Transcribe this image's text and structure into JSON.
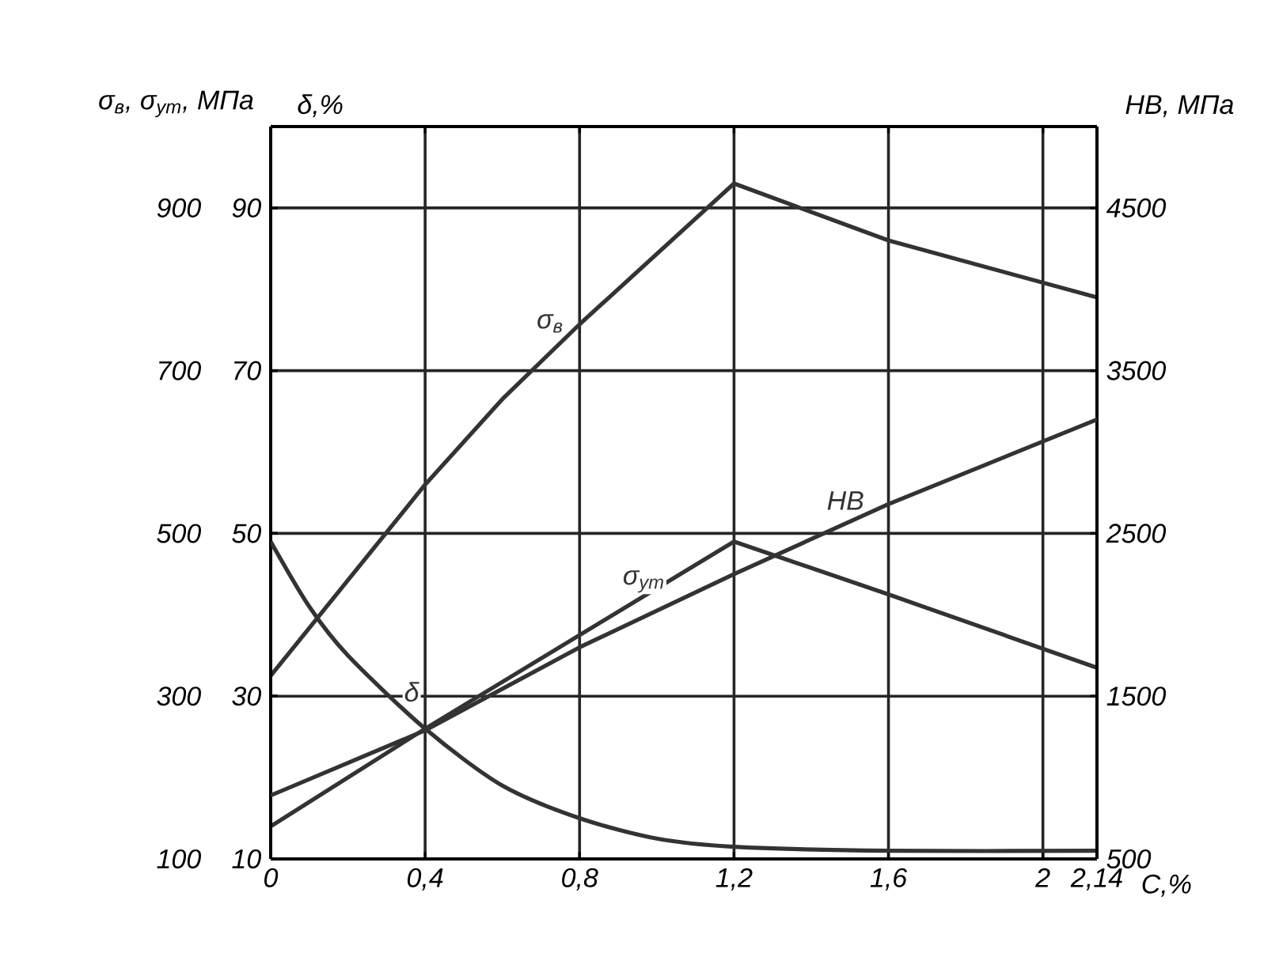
{
  "chart_data": {
    "type": "line",
    "xlabel": "C,%",
    "ylabel": "σ$_{в}$, σ$_{ут}$, МПа",
    "y2label": "δ,%",
    "y3label": "НВ, МПа",
    "xlim": [
      0,
      2.14
    ],
    "xticks": [
      0,
      {
        "value": 0.4,
        "label": "0,4"
      },
      {
        "value": 0.8,
        "label": "0,8"
      },
      {
        "value": 1.2,
        "label": "1,2"
      },
      {
        "value": 1.6,
        "label": "1,6"
      },
      2,
      {
        "value": 2.14,
        "label": "2,14"
      }
    ],
    "ylim": [
      100,
      1000
    ],
    "yticks": [
      100,
      300,
      500,
      700,
      900
    ],
    "y2lim": [
      10,
      100
    ],
    "y2ticks": [
      10,
      30,
      50,
      70,
      90
    ],
    "y3lim": [
      500,
      5000
    ],
    "y3ticks": [
      500,
      1500,
      2500,
      3500,
      4500
    ],
    "grid": true,
    "legend": false,
    "marker": "none",
    "line_style": "solid",
    "series": [
      {
        "name": "σ$_{в}$",
        "color": "#333333",
        "x": [
          0,
          0.4,
          0.6,
          0.8,
          1.2,
          1.6,
          2.14
        ],
        "values": [
          325,
          560,
          665,
          757,
          930,
          860,
          790
        ]
      },
      {
        "name": "σ$_{ут}$",
        "color": "#333333",
        "x": [
          0,
          0.4,
          1.2,
          1.6,
          2.14
        ],
        "values": [
          140,
          260,
          490,
          425,
          335
        ]
      },
      {
        "name": "НВ",
        "color": "#333333",
        "axis": "y3",
        "x": [
          0,
          0.4,
          0.8,
          1.2,
          1.6,
          2.14
        ],
        "values": [
          890,
          1290,
          1800,
          2250,
          2680,
          3200
        ]
      },
      {
        "name": "δ",
        "color": "#333333",
        "axis": "y2",
        "x": [
          0,
          0.1,
          0.2,
          0.4,
          0.6,
          0.8,
          1.0,
          1.2,
          1.6,
          2.14
        ],
        "values": [
          49,
          41,
          35,
          26,
          19,
          15,
          12.5,
          11.5,
          11,
          11
        ]
      }
    ]
  }
}
